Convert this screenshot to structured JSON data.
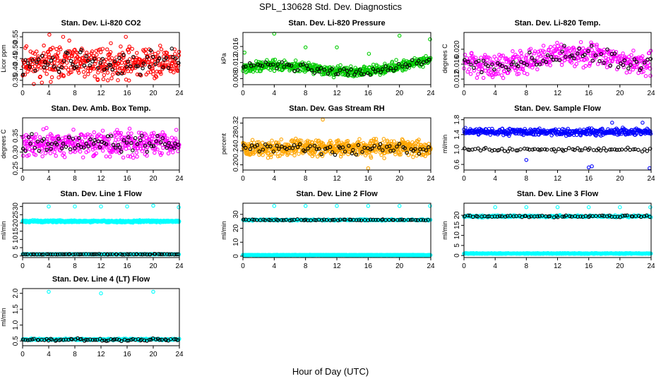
{
  "figure": {
    "title": "SPL_130628  Std. Dev. Diagnostics",
    "xlabel": "Hour of Day (UTC)"
  },
  "chart_data": [
    {
      "type": "scatter",
      "title": "Stan. Dev. Li-820 CO2",
      "ylabel": "Licor ppm",
      "xlim": [
        0,
        24
      ],
      "xticks": [
        0,
        4,
        8,
        12,
        16,
        20,
        24
      ],
      "ylim": [
        0.33,
        0.57
      ],
      "yticks": [
        0.35,
        0.4,
        0.45,
        0.5,
        0.55
      ],
      "ytick_labels": [
        "0.35",
        "0.40",
        "0.45",
        "0.50",
        "0.55"
      ],
      "series": [
        {
          "color": "#ff0000",
          "pattern": "noisy",
          "base": 0.43,
          "spread": 0.06,
          "n": 420,
          "seed": 11
        },
        {
          "color": "#000000",
          "pattern": "noisy",
          "base": 0.43,
          "spread": 0.045,
          "n": 70,
          "seed": 12
        }
      ],
      "outliers": [
        {
          "x": 4.1,
          "y": 0.56,
          "color": "#ff0000"
        },
        {
          "x": 6.2,
          "y": 0.55,
          "color": "#ff0000"
        },
        {
          "x": 15.8,
          "y": 0.55,
          "color": "#ff0000"
        }
      ]
    },
    {
      "type": "scatter",
      "title": "Stan. Dev. Li-820 Pressure",
      "ylabel": "kPa",
      "xlim": [
        0,
        24
      ],
      "xticks": [
        0,
        4,
        8,
        12,
        16,
        20,
        24
      ],
      "ylim": [
        0.0065,
        0.0195
      ],
      "yticks": [
        0.008,
        0.012,
        0.016
      ],
      "ytick_labels": [
        "0.008",
        "0.012",
        "0.016"
      ],
      "series": [
        {
          "color": "#00cc00",
          "pattern": "pressure",
          "base": 0.0105,
          "spread": 0.001,
          "n": 520,
          "seed": 21
        },
        {
          "color": "#000000",
          "pattern": "pressure",
          "base": 0.0105,
          "spread": 0.0008,
          "n": 70,
          "seed": 22
        }
      ],
      "outliers": [
        {
          "x": 0.2,
          "y": 0.0145,
          "color": "#00cc00"
        },
        {
          "x": 4.0,
          "y": 0.0192,
          "color": "#00cc00"
        },
        {
          "x": 8.0,
          "y": 0.0158,
          "color": "#00cc00"
        },
        {
          "x": 12.0,
          "y": 0.0158,
          "color": "#00cc00"
        },
        {
          "x": 16.1,
          "y": 0.0142,
          "color": "#00cc00"
        },
        {
          "x": 20.0,
          "y": 0.0187,
          "color": "#00cc00"
        },
        {
          "x": 23.9,
          "y": 0.0178,
          "color": "#00cc00"
        }
      ]
    },
    {
      "type": "scatter",
      "title": "Stan. Dev. Li-820 Temp.",
      "ylabel": "degrees C",
      "xlim": [
        0,
        24
      ],
      "xticks": [
        0,
        4,
        8,
        12,
        16,
        20,
        24
      ],
      "ylim": [
        0.0105,
        0.0245
      ],
      "yticks": [
        0.012,
        0.016,
        0.02
      ],
      "ytick_labels": [
        "0.012",
        "0.016",
        "0.020"
      ],
      "series": [
        {
          "color": "#ff00ff",
          "pattern": "temp",
          "base": 0.0175,
          "spread": 0.0025,
          "n": 420,
          "seed": 31
        },
        {
          "color": "#000000",
          "pattern": "temp",
          "base": 0.0175,
          "spread": 0.002,
          "n": 70,
          "seed": 32
        }
      ],
      "outliers": []
    },
    {
      "type": "scatter",
      "title": "Stan. Dev. Amb. Box Temp.",
      "ylabel": "degrees C",
      "xlim": [
        0,
        24
      ],
      "xticks": [
        0,
        4,
        8,
        12,
        16,
        20,
        24
      ],
      "ylim": [
        0.245,
        0.405
      ],
      "yticks": [
        0.25,
        0.3,
        0.35
      ],
      "ytick_labels": [
        "0.25",
        "0.30",
        "0.35"
      ],
      "series": [
        {
          "color": "#ff00ff",
          "pattern": "noisy",
          "base": 0.325,
          "spread": 0.03,
          "n": 420,
          "seed": 41
        },
        {
          "color": "#000000",
          "pattern": "noisy",
          "base": 0.325,
          "spread": 0.02,
          "n": 70,
          "seed": 42
        }
      ],
      "outliers": []
    },
    {
      "type": "scatter",
      "title": "Stan. Dev. Gas Stream RH",
      "ylabel": "percent",
      "xlim": [
        0,
        24
      ],
      "xticks": [
        0,
        4,
        8,
        12,
        16,
        20,
        24
      ],
      "ylim": [
        0.185,
        0.335
      ],
      "yticks": [
        0.2,
        0.24,
        0.28,
        0.32
      ],
      "ytick_labels": [
        "0.20",
        "0.24",
        "0.28",
        "0.32"
      ],
      "series": [
        {
          "color": "#ffa500",
          "pattern": "noisy",
          "base": 0.248,
          "spread": 0.018,
          "n": 620,
          "seed": 51
        },
        {
          "color": "#000000",
          "pattern": "noisy",
          "base": 0.248,
          "spread": 0.013,
          "n": 70,
          "seed": 52
        }
      ],
      "outliers": [
        {
          "x": 10.2,
          "y": 0.33,
          "color": "#ffa500"
        },
        {
          "x": 16.0,
          "y": 0.19,
          "color": "#ffa500"
        }
      ]
    },
    {
      "type": "scatter",
      "title": "Stan. Dev. Sample Flow",
      "ylabel": "ml/min",
      "xlim": [
        0,
        24
      ],
      "xticks": [
        0,
        4,
        8,
        12,
        16,
        20,
        24
      ],
      "ylim": [
        0.45,
        1.85
      ],
      "yticks": [
        0.6,
        1.0,
        1.4,
        1.8
      ],
      "ytick_labels": [
        "0.6",
        "1.0",
        "1.4",
        "1.8"
      ],
      "series": [
        {
          "color": "#0000ff",
          "pattern": "flat",
          "base": 1.47,
          "spread": 0.07,
          "n": 420,
          "seed": 61
        },
        {
          "color": "#000000",
          "pattern": "flat",
          "base": 1.0,
          "spread": 0.04,
          "n": 70,
          "seed": 62
        }
      ],
      "outliers": [
        {
          "x": 16.0,
          "y": 0.52,
          "color": "#0000ff"
        },
        {
          "x": 16.4,
          "y": 0.55,
          "color": "#0000ff"
        },
        {
          "x": 23.8,
          "y": 0.5,
          "color": "#0000ff"
        },
        {
          "x": 8.0,
          "y": 0.72,
          "color": "#0000ff"
        },
        {
          "x": 19.0,
          "y": 1.72,
          "color": "#0000ff"
        },
        {
          "x": 22.9,
          "y": 1.72,
          "color": "#0000ff"
        }
      ]
    },
    {
      "type": "scatter",
      "title": "Stan. Dev. Line 1 Flow",
      "ylabel": "ml/min",
      "xlim": [
        0,
        24
      ],
      "xticks": [
        0,
        4,
        8,
        12,
        16,
        20,
        24
      ],
      "ylim": [
        -1,
        32
      ],
      "yticks": [
        0,
        5,
        10,
        15,
        20,
        25,
        30
      ],
      "ytick_labels": [
        "0",
        "5",
        "10",
        "15",
        "20",
        "25",
        "30"
      ],
      "series": [
        {
          "color": "#00ffff",
          "pattern": "flat",
          "base": 21,
          "spread": 0.5,
          "n": 520,
          "seed": 71
        },
        {
          "color": "#00ffff",
          "pattern": "flat",
          "base": 1.0,
          "spread": 0.15,
          "n": 300,
          "seed": 73
        },
        {
          "color": "#000000",
          "pattern": "flat",
          "base": 1.0,
          "spread": 0.15,
          "n": 70,
          "seed": 72
        }
      ],
      "outliers": [
        {
          "x": 4.0,
          "y": 30,
          "color": "#00ffff"
        },
        {
          "x": 8.0,
          "y": 30,
          "color": "#00ffff"
        },
        {
          "x": 12.0,
          "y": 30,
          "color": "#00ffff"
        },
        {
          "x": 16.0,
          "y": 30,
          "color": "#00ffff"
        },
        {
          "x": 20.0,
          "y": 30.5,
          "color": "#00ffff"
        },
        {
          "x": 23.9,
          "y": 29.5,
          "color": "#00ffff"
        }
      ]
    },
    {
      "type": "scatter",
      "title": "Stan. Dev. Line 2 Flow",
      "ylabel": "ml/min",
      "xlim": [
        0,
        24
      ],
      "xticks": [
        0,
        4,
        8,
        12,
        16,
        20,
        24
      ],
      "ylim": [
        -1,
        38
      ],
      "yticks": [
        0,
        10,
        20,
        30
      ],
      "ytick_labels": [
        "0",
        "10",
        "20",
        "30"
      ],
      "series": [
        {
          "color": "#00ffff",
          "pattern": "flat",
          "base": 26,
          "spread": 0.4,
          "n": 300,
          "seed": 81
        },
        {
          "color": "#00ffff",
          "pattern": "flat",
          "base": 0.8,
          "spread": 0.15,
          "n": 520,
          "seed": 83
        },
        {
          "color": "#000000",
          "pattern": "flat",
          "base": 26,
          "spread": 0.3,
          "n": 70,
          "seed": 82
        }
      ],
      "outliers": [
        {
          "x": 4.0,
          "y": 36,
          "color": "#00ffff"
        },
        {
          "x": 8.0,
          "y": 36,
          "color": "#00ffff"
        },
        {
          "x": 12.0,
          "y": 36,
          "color": "#00ffff"
        },
        {
          "x": 16.0,
          "y": 36,
          "color": "#00ffff"
        },
        {
          "x": 20.0,
          "y": 36,
          "color": "#00ffff"
        },
        {
          "x": 23.9,
          "y": 36,
          "color": "#00ffff"
        }
      ]
    },
    {
      "type": "scatter",
      "title": "Stan. Dev. Line 3 Flow",
      "ylabel": "ml/min",
      "xlim": [
        0,
        24
      ],
      "xticks": [
        0,
        4,
        8,
        12,
        16,
        20,
        24
      ],
      "ylim": [
        -1,
        26
      ],
      "yticks": [
        0,
        5,
        10,
        15,
        20
      ],
      "ytick_labels": [
        "0",
        "5",
        "10",
        "15",
        "20"
      ],
      "series": [
        {
          "color": "#00ffff",
          "pattern": "flat",
          "base": 19.5,
          "spread": 0.4,
          "n": 300,
          "seed": 91
        },
        {
          "color": "#00ffff",
          "pattern": "flat",
          "base": 1.0,
          "spread": 0.15,
          "n": 520,
          "seed": 93
        },
        {
          "color": "#000000",
          "pattern": "flat",
          "base": 19.5,
          "spread": 0.4,
          "n": 70,
          "seed": 92
        }
      ],
      "outliers": [
        {
          "x": 4.0,
          "y": 24,
          "color": "#00ffff"
        },
        {
          "x": 8.0,
          "y": 24,
          "color": "#00ffff"
        },
        {
          "x": 12.0,
          "y": 24,
          "color": "#00ffff"
        },
        {
          "x": 16.0,
          "y": 24,
          "color": "#00ffff"
        },
        {
          "x": 20.0,
          "y": 24,
          "color": "#00ffff"
        },
        {
          "x": 23.9,
          "y": 24,
          "color": "#00ffff"
        }
      ]
    },
    {
      "type": "scatter",
      "title": "Stan. Dev. Line 4 (LT) Flow",
      "ylabel": "ml/min",
      "xlim": [
        0,
        24
      ],
      "xticks": [
        0,
        4,
        8,
        12,
        16,
        20,
        24
      ],
      "ylim": [
        0.35,
        2.15
      ],
      "yticks": [
        0.5,
        1.0,
        1.5,
        2.0
      ],
      "ytick_labels": [
        "0.5",
        "1.0",
        "1.5",
        "2.0"
      ],
      "series": [
        {
          "color": "#00ffff",
          "pattern": "flat",
          "base": 0.55,
          "spread": 0.02,
          "n": 300,
          "seed": 101
        },
        {
          "color": "#000000",
          "pattern": "flat",
          "base": 0.54,
          "spread": 0.03,
          "n": 70,
          "seed": 102
        }
      ],
      "outliers": [
        {
          "x": 4.0,
          "y": 2.05,
          "color": "#00ffff"
        },
        {
          "x": 12.0,
          "y": 2.0,
          "color": "#00ffff"
        },
        {
          "x": 20.0,
          "y": 2.05,
          "color": "#00ffff"
        }
      ]
    }
  ]
}
